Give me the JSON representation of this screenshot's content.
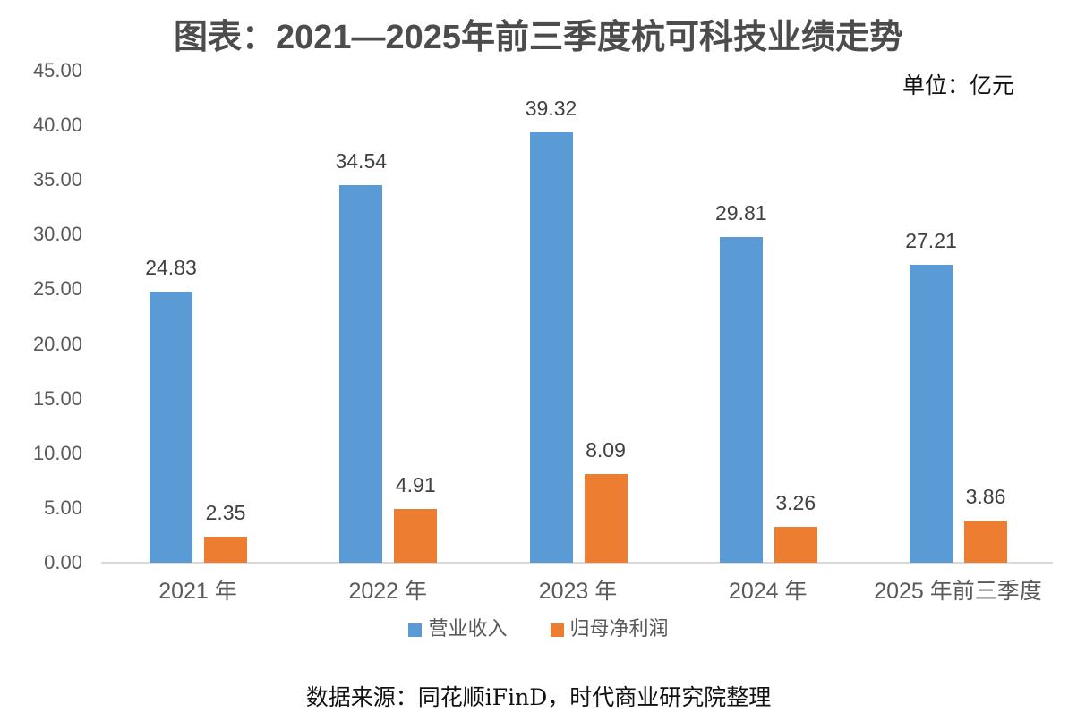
{
  "title": {
    "prefix": "图表：",
    "years": "2021—2025",
    "suffix": "年前三季度杭可科技业绩走势",
    "full": "图表：2021—2025年前三季度杭可科技业绩走势"
  },
  "unit_label": "单位：亿元",
  "source_note": "数据来源：同花顺iFinD，时代商业研究院整理",
  "chart_data": {
    "type": "bar",
    "title": "图表：2021—2025年前三季度杭可科技业绩走势",
    "unit": "亿元",
    "categories": [
      "2021 年",
      "2022 年",
      "2023 年",
      "2024 年",
      "2025 年前三季度"
    ],
    "series": [
      {
        "name": "营业收入",
        "color": "#5B9BD5",
        "values": [
          24.83,
          34.54,
          39.32,
          29.81,
          27.21
        ]
      },
      {
        "name": "归母净利润",
        "color": "#ED7D31",
        "values": [
          2.35,
          4.91,
          8.09,
          3.26,
          3.86
        ]
      }
    ],
    "ylim": [
      0,
      45
    ],
    "ytick_step": 5,
    "ytick_labels": [
      "0.00",
      "5.00",
      "10.00",
      "15.00",
      "20.00",
      "25.00",
      "30.00",
      "35.00",
      "40.00",
      "45.00"
    ],
    "grid": false,
    "legend_position": "bottom",
    "value_labels": true,
    "value_label_decimals": 2
  }
}
